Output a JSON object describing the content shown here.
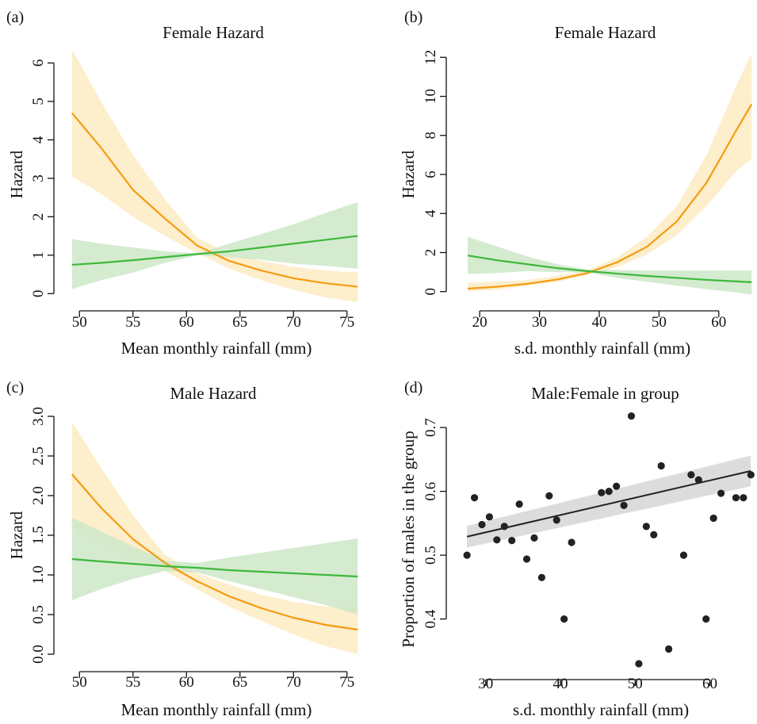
{
  "colors": {
    "orange": "#F39C12",
    "orange_band": "#FDEBC3",
    "green": "#3DB83A",
    "green_band": "#CDE8C8",
    "black": "#222222",
    "gray_band": "#DCDCDC"
  },
  "chart_data": [
    {
      "panel_label": "(a)",
      "type": "line",
      "title": "Female Hazard",
      "xlabel": "Mean monthly rainfall (mm)",
      "ylabel": "Hazard",
      "xlim": [
        48.5,
        76.5
      ],
      "ylim": [
        -0.2,
        6.4
      ],
      "xticks": [
        50,
        55,
        60,
        65,
        70,
        75
      ],
      "yticks": [
        0,
        1,
        2,
        3,
        4,
        5,
        6
      ],
      "series": [
        {
          "color_key": "orange",
          "x": [
            49.3,
            52,
            55,
            58,
            61,
            64,
            67,
            70,
            73,
            76
          ],
          "y": [
            4.7,
            3.8,
            2.7,
            1.95,
            1.25,
            0.85,
            0.6,
            0.4,
            0.27,
            0.18
          ],
          "lower": [
            3.05,
            2.6,
            2.0,
            1.5,
            1.05,
            0.65,
            0.35,
            0.1,
            -0.1,
            -0.22
          ],
          "upper": [
            6.35,
            5.0,
            3.6,
            2.45,
            1.45,
            1.05,
            0.85,
            0.7,
            0.6,
            0.55
          ]
        },
        {
          "color_key": "green",
          "x": [
            49.3,
            52,
            55,
            58,
            61,
            64,
            67,
            70,
            73,
            76
          ],
          "y": [
            0.75,
            0.8,
            0.87,
            0.95,
            1.03,
            1.1,
            1.2,
            1.3,
            1.4,
            1.5
          ],
          "lower": [
            0.12,
            0.35,
            0.55,
            0.8,
            1.0,
            0.95,
            0.88,
            0.78,
            0.72,
            0.65
          ],
          "upper": [
            1.42,
            1.3,
            1.2,
            1.1,
            1.05,
            1.3,
            1.55,
            1.8,
            2.1,
            2.38
          ]
        }
      ]
    },
    {
      "panel_label": "(b)",
      "type": "line",
      "title": "Female Hazard",
      "xlabel": "s.d. monthly rainfall (mm)",
      "ylabel": "Hazard",
      "xlim": [
        16,
        66
      ],
      "ylim": [
        -0.5,
        12.5
      ],
      "xticks": [
        20,
        30,
        40,
        50,
        60
      ],
      "yticks": [
        0,
        2,
        4,
        6,
        8,
        10,
        12
      ],
      "series": [
        {
          "color_key": "orange",
          "x": [
            18,
            23,
            28,
            33,
            38,
            43,
            48,
            53,
            58,
            63,
            65.5
          ],
          "y": [
            0.15,
            0.25,
            0.4,
            0.62,
            0.95,
            1.5,
            2.3,
            3.6,
            5.6,
            8.3,
            9.6
          ],
          "lower": [
            0.0,
            0.1,
            0.3,
            0.5,
            0.85,
            1.25,
            1.9,
            2.9,
            4.4,
            6.2,
            6.8
          ],
          "upper": [
            0.45,
            0.5,
            0.6,
            0.8,
            1.1,
            1.75,
            2.8,
            4.4,
            7.0,
            10.6,
            12.2
          ]
        },
        {
          "color_key": "green",
          "x": [
            18,
            23,
            28,
            33,
            38,
            43,
            48,
            53,
            58,
            63,
            65.5
          ],
          "y": [
            1.85,
            1.6,
            1.4,
            1.2,
            1.05,
            0.92,
            0.8,
            0.7,
            0.6,
            0.52,
            0.48
          ],
          "lower": [
            0.9,
            0.95,
            1.05,
            1.0,
            0.98,
            0.7,
            0.5,
            0.3,
            0.12,
            -0.05,
            -0.15
          ],
          "upper": [
            2.8,
            2.3,
            1.8,
            1.4,
            1.12,
            1.1,
            1.08,
            1.08,
            1.08,
            1.08,
            1.08
          ]
        }
      ]
    },
    {
      "panel_label": "(c)",
      "type": "line",
      "title": "Male Hazard",
      "xlabel": "Mean monthly rainfall (mm)",
      "ylabel": "Hazard",
      "xlim": [
        48.5,
        76.5
      ],
      "ylim": [
        -0.1,
        3.1
      ],
      "xticks": [
        50,
        55,
        60,
        65,
        70,
        75
      ],
      "yticks": [
        0.0,
        0.5,
        1.0,
        1.5,
        2.0,
        2.5,
        3.0
      ],
      "ytick_labels": [
        "0.0",
        "0.5",
        "1.0",
        "1.5",
        "2.0",
        "2.5",
        "3.0"
      ],
      "series": [
        {
          "color_key": "orange",
          "x": [
            49.3,
            52,
            55,
            58,
            61,
            64,
            67,
            70,
            73,
            76
          ],
          "y": [
            2.27,
            1.85,
            1.45,
            1.15,
            0.92,
            0.73,
            0.58,
            0.46,
            0.37,
            0.31
          ],
          "lower": [
            1.6,
            1.4,
            1.2,
            1.05,
            0.82,
            0.6,
            0.42,
            0.25,
            0.1,
            0.0
          ],
          "upper": [
            2.93,
            2.35,
            1.75,
            1.25,
            1.02,
            0.88,
            0.75,
            0.66,
            0.6,
            0.62
          ]
        },
        {
          "color_key": "green",
          "x": [
            49.3,
            52,
            55,
            58,
            61,
            64,
            67,
            70,
            73,
            76
          ],
          "y": [
            1.2,
            1.17,
            1.14,
            1.11,
            1.09,
            1.06,
            1.04,
            1.02,
            1.0,
            0.98
          ],
          "lower": [
            0.68,
            0.82,
            0.95,
            1.05,
            1.03,
            0.92,
            0.82,
            0.72,
            0.62,
            0.5
          ],
          "upper": [
            1.72,
            1.55,
            1.36,
            1.18,
            1.15,
            1.22,
            1.28,
            1.34,
            1.4,
            1.46
          ]
        }
      ]
    },
    {
      "panel_label": "(d)",
      "type": "scatter",
      "title": "Male:Female in group",
      "xlabel": "s.d. monthly rainfall (mm)",
      "ylabel": "Proportion of males in the group",
      "xlim": [
        26,
        66
      ],
      "ylim": [
        0.32,
        0.73
      ],
      "xticks": [
        30,
        40,
        50,
        60
      ],
      "yticks": [
        0.4,
        0.5,
        0.6,
        0.7
      ],
      "ytick_labels": [
        "0.4",
        "0.5",
        "0.6",
        "0.7"
      ],
      "points": [
        [
          27.5,
          0.5
        ],
        [
          28.5,
          0.59
        ],
        [
          29.5,
          0.548
        ],
        [
          30.5,
          0.56
        ],
        [
          31.5,
          0.524
        ],
        [
          32.5,
          0.545
        ],
        [
          33.5,
          0.523
        ],
        [
          34.5,
          0.58
        ],
        [
          35.5,
          0.494
        ],
        [
          36.5,
          0.527
        ],
        [
          37.5,
          0.465
        ],
        [
          38.5,
          0.593
        ],
        [
          39.5,
          0.555
        ],
        [
          40.5,
          0.4
        ],
        [
          41.5,
          0.52
        ],
        [
          45.5,
          0.598
        ],
        [
          46.5,
          0.6
        ],
        [
          47.5,
          0.608
        ],
        [
          48.5,
          0.578
        ],
        [
          49.5,
          0.718
        ],
        [
          50.5,
          0.33
        ],
        [
          51.5,
          0.545
        ],
        [
          52.5,
          0.532
        ],
        [
          53.5,
          0.64
        ],
        [
          54.5,
          0.353
        ],
        [
          56.5,
          0.5
        ],
        [
          57.5,
          0.626
        ],
        [
          58.5,
          0.618
        ],
        [
          59.5,
          0.4
        ],
        [
          60.5,
          0.558
        ],
        [
          61.5,
          0.597
        ],
        [
          63.5,
          0.59
        ],
        [
          64.5,
          0.59
        ],
        [
          65.5,
          0.626
        ]
      ],
      "fit": {
        "x": [
          27.5,
          65.5
        ],
        "y": [
          0.529,
          0.632
        ],
        "lower": [
          0.512,
          0.608
        ],
        "upper": [
          0.546,
          0.656
        ]
      }
    }
  ]
}
